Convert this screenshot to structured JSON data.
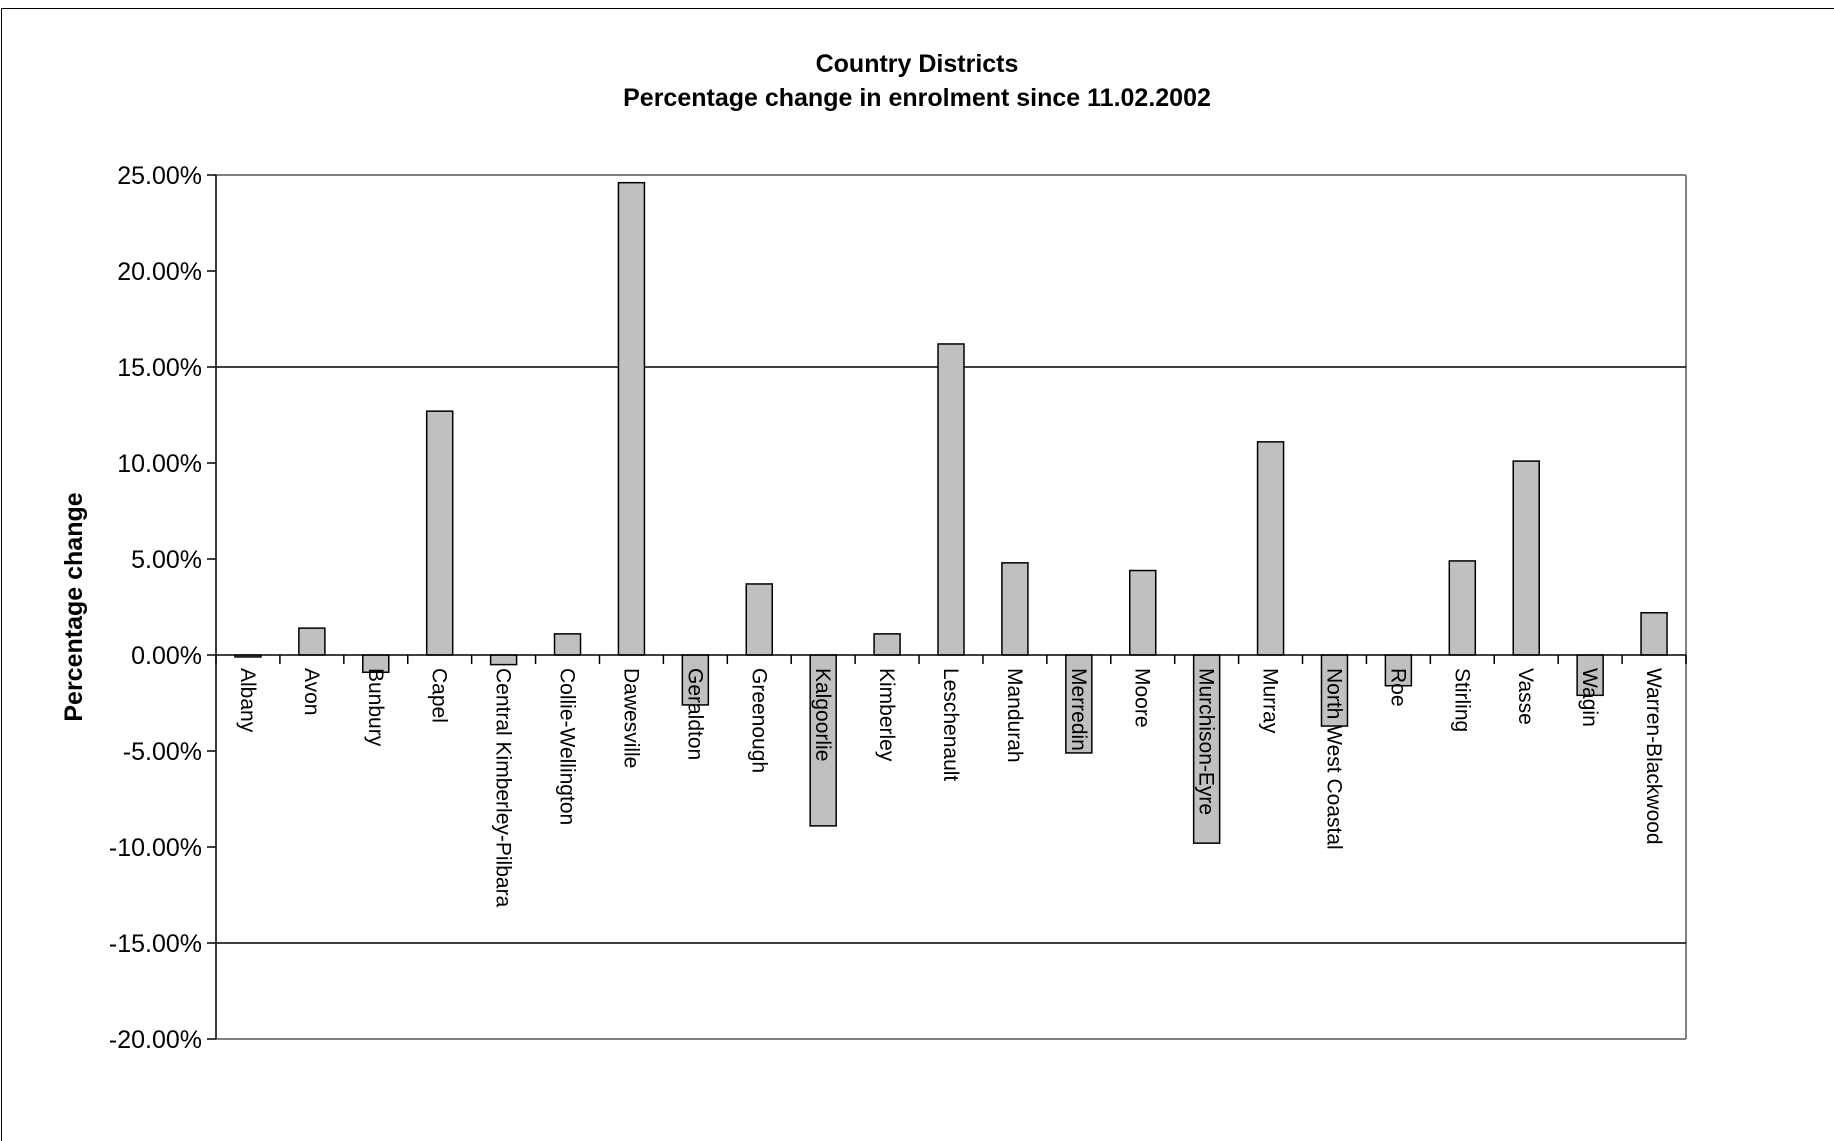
{
  "chart_data": {
    "type": "bar",
    "title": "Country Districts",
    "subtitle": "Percentage change in enrolment since 11.02.2002",
    "xlabel": "",
    "ylabel": "Percentage change",
    "ylim": [
      -0.2,
      0.25
    ],
    "yticks": [
      "25.00%",
      "20.00%",
      "15.00%",
      "10.00%",
      "5.00%",
      "0.00%",
      "-5.00%",
      "-10.00%",
      "-15.00%",
      "-20.00%"
    ],
    "ytick_values": [
      0.25,
      0.2,
      0.15,
      0.1,
      0.05,
      0.0,
      -0.05,
      -0.1,
      -0.15,
      -0.2
    ],
    "reference_lines": [
      0.15,
      -0.15
    ],
    "bar_color": "#c0c0c0",
    "categories": [
      "Albany",
      "Avon",
      "Bunbury",
      "Capel",
      "Central Kimberley-Pilbara",
      "Collie-Wellington",
      "Dawesville",
      "Geraldton",
      "Greenough",
      "Kalgoorlie",
      "Kimberley",
      "Leschenault",
      "Mandurah",
      "Merredin",
      "Moore",
      "Murchison-Eyre",
      "Murray",
      "North West Coastal",
      "Roe",
      "Stirling",
      "Vasse",
      "Wagin",
      "Warren-Blackwood"
    ],
    "values": [
      -0.001,
      0.014,
      -0.009,
      0.127,
      -0.005,
      0.011,
      0.246,
      -0.026,
      0.037,
      -0.089,
      0.011,
      0.162,
      0.048,
      -0.051,
      0.044,
      -0.098,
      0.111,
      -0.037,
      -0.016,
      0.049,
      0.101,
      -0.021,
      0.022
    ]
  }
}
